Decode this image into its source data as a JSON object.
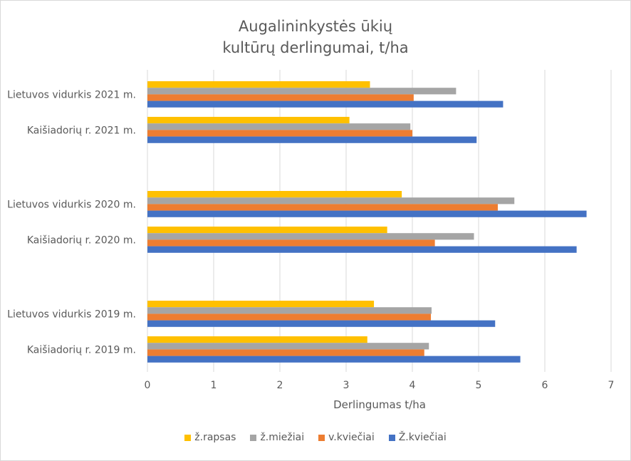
{
  "chart_data": {
    "type": "bar",
    "orientation": "horizontal",
    "title": [
      "Augalininkystės ūkių",
      "kultūrų derlingumai, t/ha"
    ],
    "xlabel": "Derlingumas t/ha",
    "ylabel": "",
    "xlim": [
      0,
      7
    ],
    "x_ticks": [
      0,
      1,
      2,
      3,
      4,
      5,
      6,
      7
    ],
    "grid": "vertical",
    "legend_position": "bottom",
    "categories": [
      "Lietuvos vidurkis 2021 m.",
      "Kaišiadorių r. 2021 m.",
      "Lietuvos vidurkis 2020 m.",
      "Kaišiadorių r. 2020 m.",
      "Lietuvos vidurkis 2019 m.",
      "Kaišiadorių r. 2019 m."
    ],
    "series": [
      {
        "name": "ž.rapsas",
        "color": "#ffc000",
        "values": [
          3.36,
          3.05,
          3.84,
          3.62,
          3.42,
          3.32
        ]
      },
      {
        "name": "ž.miežiai",
        "color": "#a5a5a5",
        "values": [
          4.66,
          3.97,
          5.54,
          4.93,
          4.29,
          4.25
        ]
      },
      {
        "name": "v.kviečiai",
        "color": "#ed7d31",
        "values": [
          4.02,
          4.0,
          5.29,
          4.34,
          4.28,
          4.18
        ]
      },
      {
        "name": "Ž.kviečiai",
        "color": "#4472c4",
        "values": [
          5.37,
          4.97,
          6.63,
          6.48,
          5.25,
          5.63
        ]
      }
    ]
  }
}
